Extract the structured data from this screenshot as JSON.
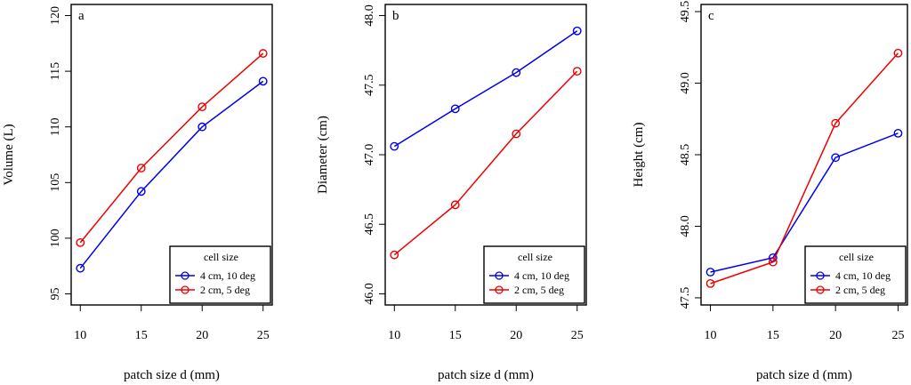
{
  "chart_data": [
    {
      "type": "line",
      "panel_label": "a",
      "x": [
        10,
        15,
        20,
        25
      ],
      "xticks": [
        "10",
        "15",
        "20",
        "25"
      ],
      "xlabel": "patch size d (mm)",
      "ylabel": "Volume (L)",
      "ylim": [
        94,
        121
      ],
      "yticks": [
        95,
        100,
        105,
        110,
        115,
        120
      ],
      "ytick_labels": [
        "95",
        "100",
        "105",
        "110",
        "115",
        "120"
      ],
      "legend_title": "cell size",
      "legend_position": "bottom-right",
      "series": [
        {
          "name": "4 cm, 10 deg",
          "color": "#0000ee",
          "values": [
            97.3,
            104.2,
            110.0,
            114.1
          ]
        },
        {
          "name": "2 cm, 5 deg",
          "color": "#ee0000",
          "values": [
            99.6,
            106.3,
            111.8,
            116.6
          ]
        }
      ]
    },
    {
      "type": "line",
      "panel_label": "b",
      "x": [
        10,
        15,
        20,
        25
      ],
      "xticks": [
        "10",
        "15",
        "20",
        "25"
      ],
      "xlabel": "patch size d (mm)",
      "ylabel": "Diameter (cm)",
      "ylim": [
        45.92,
        48.08
      ],
      "yticks": [
        46.0,
        46.5,
        47.0,
        47.5,
        48.0
      ],
      "ytick_labels": [
        "46.0",
        "46.5",
        "47.0",
        "47.5",
        "48.0"
      ],
      "legend_title": "cell size",
      "legend_position": "bottom-right",
      "series": [
        {
          "name": "4 cm, 10 deg",
          "color": "#0000ee",
          "values": [
            47.06,
            47.33,
            47.59,
            47.89
          ]
        },
        {
          "name": "2 cm, 5 deg",
          "color": "#ee0000",
          "values": [
            46.28,
            46.64,
            47.15,
            47.6
          ]
        }
      ]
    },
    {
      "type": "line",
      "panel_label": "c",
      "x": [
        10,
        15,
        20,
        25
      ],
      "xticks": [
        "10",
        "15",
        "20",
        "25"
      ],
      "xlabel": "patch size d (mm)",
      "ylabel": "Height (cm)",
      "ylim": [
        47.45,
        49.55
      ],
      "yticks": [
        47.5,
        48.0,
        48.5,
        49.0,
        49.5
      ],
      "ytick_labels": [
        "47.5",
        "48.0",
        "48.5",
        "49.0",
        "49.5"
      ],
      "legend_title": "cell size",
      "legend_position": "bottom-right",
      "series": [
        {
          "name": "4 cm, 10 deg",
          "color": "#0000ee",
          "values": [
            47.68,
            47.78,
            48.48,
            48.65
          ]
        },
        {
          "name": "2 cm, 5 deg",
          "color": "#ee0000",
          "values": [
            47.6,
            47.75,
            48.72,
            49.21
          ]
        }
      ]
    }
  ]
}
